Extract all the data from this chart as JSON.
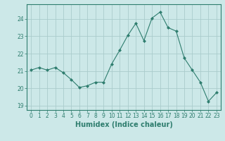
{
  "x": [
    0,
    1,
    2,
    3,
    4,
    5,
    6,
    7,
    8,
    9,
    10,
    11,
    12,
    13,
    14,
    15,
    16,
    17,
    18,
    19,
    20,
    21,
    22,
    23
  ],
  "y": [
    21.05,
    21.2,
    21.05,
    21.2,
    20.9,
    20.5,
    20.05,
    20.15,
    20.35,
    20.35,
    21.4,
    22.2,
    23.05,
    23.75,
    22.75,
    24.05,
    24.4,
    23.5,
    23.3,
    21.75,
    21.05,
    20.35,
    19.25,
    19.75
  ],
  "line_color": "#2e7d6e",
  "marker": "D",
  "marker_size": 2,
  "bg_color": "#cce8e8",
  "grid_color": "#aacccc",
  "xlabel": "Humidex (Indice chaleur)",
  "ylim": [
    18.75,
    24.85
  ],
  "xlim": [
    -0.5,
    23.5
  ],
  "yticks": [
    19,
    20,
    21,
    22,
    23,
    24
  ],
  "xticks": [
    0,
    1,
    2,
    3,
    4,
    5,
    6,
    7,
    8,
    9,
    10,
    11,
    12,
    13,
    14,
    15,
    16,
    17,
    18,
    19,
    20,
    21,
    22,
    23
  ],
  "tick_label_fontsize": 5.5,
  "xlabel_fontsize": 7,
  "tick_color": "#2e7d6e",
  "axis_color": "#2e7d6e",
  "linewidth": 0.8
}
